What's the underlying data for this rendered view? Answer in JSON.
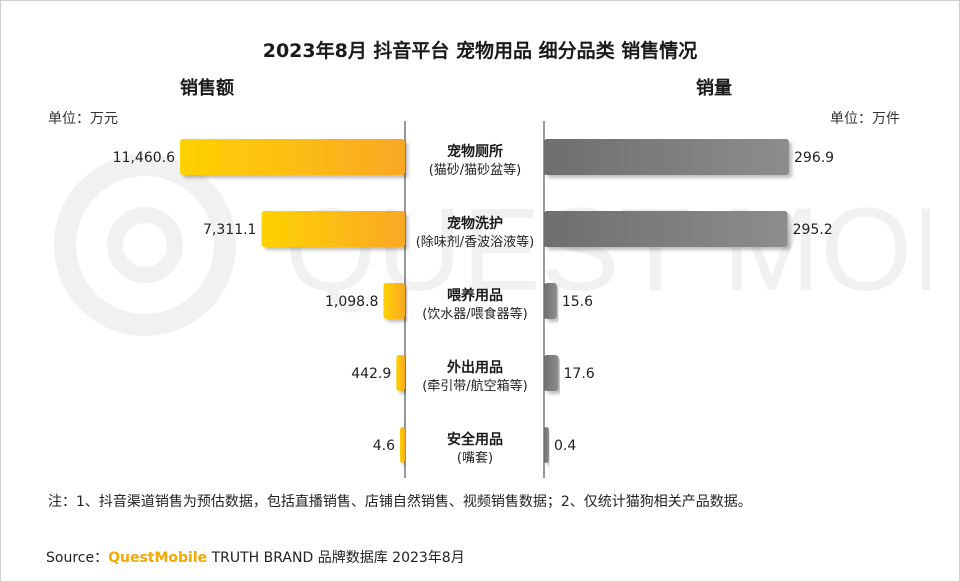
{
  "title": "2023年8月 抖音平台 宠物用品 细分品类 销售情况",
  "left_header": "销售额",
  "right_header": "销量",
  "left_unit": "单位：万元",
  "right_unit": "单位：万件",
  "watermark": "QUEST MOBILE",
  "note": "注：1、抖音渠道销售为预估数据，包括直播销售、店铺自然销售、视频销售数据；2、仅统计猫狗相关产品数据。",
  "source_prefix": "Source：",
  "source_brand": "QuestMobile",
  "source_suffix": " TRUTH BRAND 品牌数据库 2023年8月",
  "colors": {
    "left_bar_start": "#ffd200",
    "left_bar_end": "#f9a825",
    "right_bar_start": "#6e6e6e",
    "right_bar_end": "#8d8d8d",
    "brand": "#f5a800"
  },
  "chart_data": {
    "type": "bar",
    "orientation": "horizontal-butterfly",
    "categories": [
      {
        "name": "宠物厕所",
        "sub": "(猫砂/猫砂盆等)"
      },
      {
        "name": "宠物洗护",
        "sub": "(除味剂/香波浴液等)"
      },
      {
        "name": "喂养用品",
        "sub": "(饮水器/喂食器等)"
      },
      {
        "name": "外出用品",
        "sub": "(牵引带/航空箱等)"
      },
      {
        "name": "安全用品",
        "sub": "(嘴套)"
      }
    ],
    "series": [
      {
        "name": "销售额",
        "unit": "万元",
        "side": "left",
        "values": [
          11460.6,
          7311.1,
          1098.8,
          442.9,
          4.6
        ],
        "labels": [
          "11,460.6",
          "7,311.1",
          "1,098.8",
          "442.9",
          "4.6"
        ]
      },
      {
        "name": "销量",
        "unit": "万件",
        "side": "right",
        "values": [
          296.9,
          295.2,
          15.6,
          17.6,
          0.4
        ],
        "labels": [
          "296.9",
          "295.2",
          "15.6",
          "17.6",
          "0.4"
        ]
      }
    ]
  }
}
